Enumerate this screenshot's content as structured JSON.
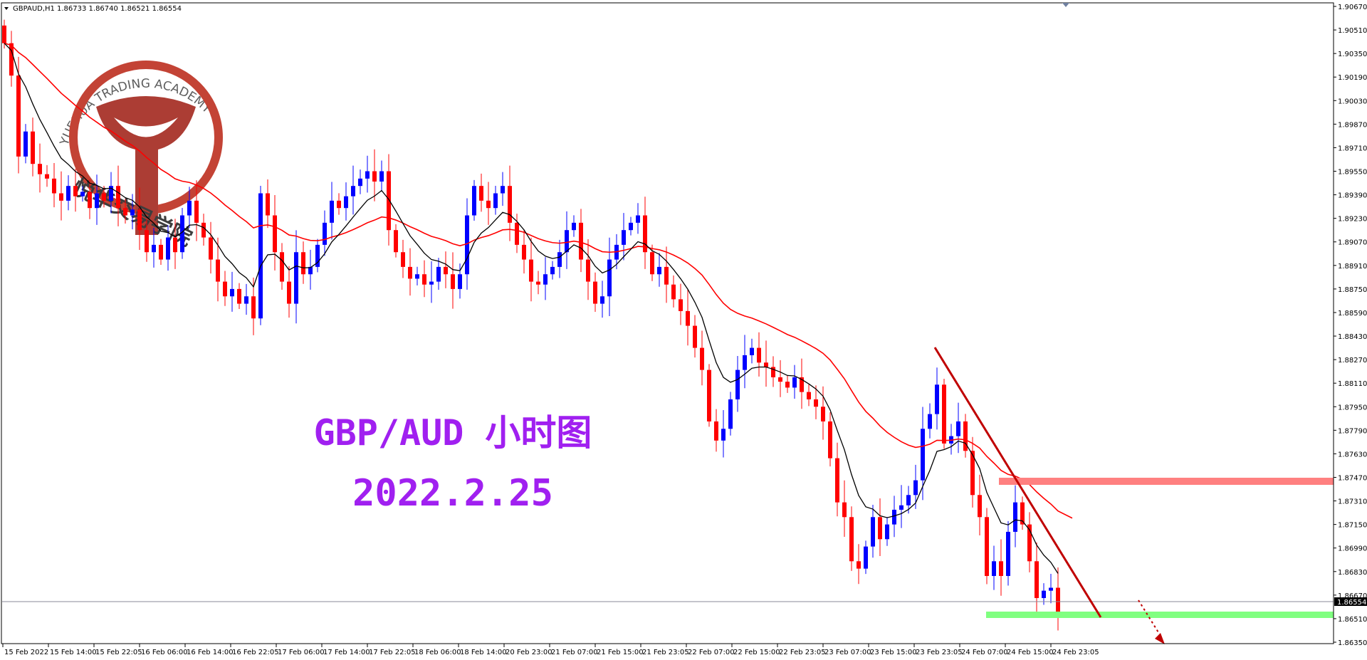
{
  "header": {
    "symbol": "GBPAUD,H1",
    "ohlc": "1.86733 1.86740 1.86521 1.86554"
  },
  "watermark": {
    "english": "YUEHUA TRADING ACADEMY",
    "chinese": "悦华交易学院",
    "color": "#c0392b"
  },
  "annotation": {
    "title": "GBP/AUD 小时图",
    "date": "2022.2.25",
    "color": "#a020f0"
  },
  "chart_data": {
    "type": "candlestick",
    "symbol": "GBPAUD",
    "timeframe": "H1",
    "ylim": [
      1.8635,
      1.9067
    ],
    "price_ticks": [
      "1.90670",
      "1.90510",
      "1.90350",
      "1.90190",
      "1.90030",
      "1.89870",
      "1.89710",
      "1.89550",
      "1.89390",
      "1.89230",
      "1.89070",
      "1.88910",
      "1.88750",
      "1.88590",
      "1.88430",
      "1.88270",
      "1.88110",
      "1.87950",
      "1.87790",
      "1.87630",
      "1.87470",
      "1.87310",
      "1.87150",
      "1.86990",
      "1.86830",
      "1.86670",
      "1.86510",
      "1.86350"
    ],
    "current_price": "1.86554",
    "time_ticks": [
      "15 Feb 2022",
      "15 Feb 14:00",
      "15 Feb 22:05",
      "16 Feb 06:00",
      "16 Feb 14:00",
      "16 Feb 22:05",
      "17 Feb 06:00",
      "17 Feb 14:00",
      "17 Feb 22:05",
      "18 Feb 06:00",
      "18 Feb 14:00",
      "20 Feb 23:00",
      "21 Feb 07:00",
      "21 Feb 15:00",
      "21 Feb 23:05",
      "22 Feb 07:00",
      "22 Feb 15:00",
      "22 Feb 23:05",
      "23 Feb 07:00",
      "23 Feb 15:00",
      "23 Feb 23:05",
      "24 Feb 07:00",
      "24 Feb 15:00",
      "24 Feb 23:05"
    ],
    "closes": [
      1.9042,
      1.902,
      1.8965,
      1.8982,
      1.896,
      1.8953,
      1.895,
      1.894,
      1.8935,
      1.8945,
      1.8938,
      1.8941,
      1.893,
      1.894,
      1.8935,
      1.8945,
      1.893,
      1.8925,
      1.8929,
      1.8915,
      1.89,
      1.8905,
      1.8895,
      1.891,
      1.89,
      1.8925,
      1.8935,
      1.892,
      1.891,
      1.8895,
      1.888,
      1.887,
      1.8875,
      1.8865,
      1.887,
      1.8855,
      1.894,
      1.8925,
      1.89,
      1.888,
      1.8865,
      1.89,
      1.8885,
      1.889,
      1.8905,
      1.892,
      1.8935,
      1.893,
      1.8938,
      1.8945,
      1.895,
      1.8955,
      1.8948,
      1.8955,
      1.8915,
      1.89,
      1.889,
      1.8882,
      1.8885,
      1.8878,
      1.888,
      1.889,
      1.8885,
      1.8875,
      1.8885,
      1.8925,
      1.8945,
      1.8935,
      1.893,
      1.894,
      1.8945,
      1.892,
      1.8905,
      1.8895,
      1.888,
      1.8878,
      1.8885,
      1.889,
      1.89,
      1.8915,
      1.892,
      1.8895,
      1.888,
      1.8865,
      1.887,
      1.8895,
      1.8905,
      1.8915,
      1.892,
      1.8925,
      1.89,
      1.8885,
      1.889,
      1.8878,
      1.8868,
      1.886,
      1.885,
      1.8835,
      1.882,
      1.8785,
      1.8772,
      1.878,
      1.88,
      1.882,
      1.883,
      1.8835,
      1.8825,
      1.8822,
      1.8815,
      1.8812,
      1.8808,
      1.8815,
      1.8805,
      1.88,
      1.8795,
      1.8785,
      1.876,
      1.873,
      1.872,
      1.869,
      1.8685,
      1.87,
      1.872,
      1.8705,
      1.8715,
      1.8725,
      1.8728,
      1.8735,
      1.8745,
      1.878,
      1.879,
      1.881,
      1.877,
      1.8775,
      1.8785,
      1.8765,
      1.8735,
      1.872,
      1.868,
      1.869,
      1.868,
      1.871,
      1.873,
      1.8715,
      1.869,
      1.8665,
      1.867,
      1.8672,
      1.86554
    ],
    "colors": {
      "up": "#0000ff",
      "down": "#ff0000",
      "ma_fast": "#000000",
      "ma_slow": "#ff0000",
      "resistance": "#ff8080",
      "support": "#80ff80",
      "trendline": "#c00000"
    },
    "grid": false
  }
}
